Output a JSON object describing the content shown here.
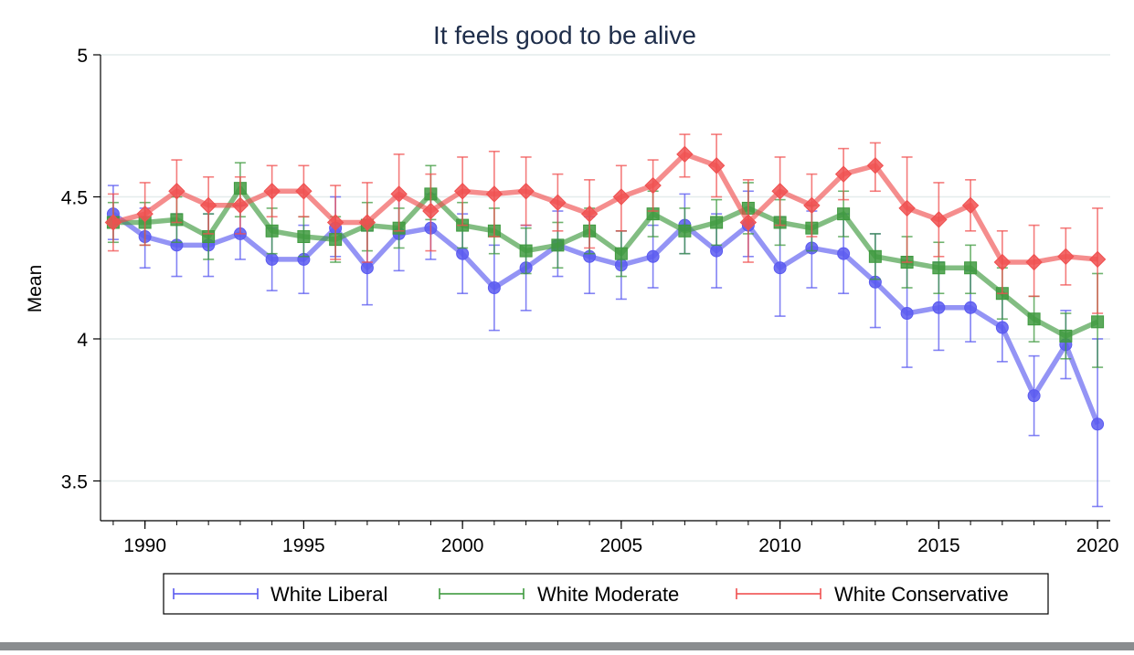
{
  "chart_data": {
    "type": "line",
    "title": "It feels good to be alive",
    "xlabel": "",
    "ylabel": "Mean",
    "xlim": [
      1988.6,
      2020.4
    ],
    "ylim": [
      3.36,
      5.0
    ],
    "x_ticks": [
      1990,
      1995,
      2000,
      2005,
      2010,
      2015,
      2020
    ],
    "y_ticks": [
      3.5,
      4,
      4.5,
      5
    ],
    "y_tick_labels": [
      "3.5",
      "4",
      "4.5",
      "5"
    ],
    "grid": true,
    "legend_position": "bottom",
    "x": [
      1989,
      1990,
      1991,
      1992,
      1993,
      1994,
      1995,
      1996,
      1997,
      1998,
      1999,
      2000,
      2001,
      2002,
      2003,
      2004,
      2005,
      2006,
      2007,
      2008,
      2009,
      2010,
      2011,
      2012,
      2013,
      2014,
      2015,
      2016,
      2017,
      2018,
      2019,
      2020
    ],
    "series": [
      {
        "name": "White Liberal",
        "color": "#5a5af0",
        "marker": "circle",
        "values": [
          4.44,
          4.36,
          4.33,
          4.33,
          4.37,
          4.28,
          4.28,
          4.39,
          4.25,
          4.37,
          4.39,
          4.3,
          4.18,
          4.25,
          4.33,
          4.29,
          4.26,
          4.29,
          4.4,
          4.31,
          4.4,
          4.25,
          4.32,
          4.3,
          4.2,
          4.09,
          4.11,
          4.11,
          4.04,
          3.8,
          3.98,
          3.7
        ],
        "err_lo": [
          4.35,
          4.25,
          4.22,
          4.22,
          4.28,
          4.17,
          4.16,
          4.29,
          4.12,
          4.24,
          4.28,
          4.16,
          4.03,
          4.1,
          4.22,
          4.16,
          4.14,
          4.18,
          4.3,
          4.18,
          4.29,
          4.08,
          4.18,
          4.16,
          4.04,
          3.9,
          3.96,
          3.99,
          3.92,
          3.66,
          3.86,
          3.41
        ],
        "err_hi": [
          4.54,
          4.46,
          4.44,
          4.44,
          4.47,
          4.39,
          4.4,
          4.5,
          4.38,
          4.5,
          4.51,
          4.44,
          4.33,
          4.4,
          4.45,
          4.43,
          4.38,
          4.4,
          4.51,
          4.44,
          4.52,
          4.43,
          4.45,
          4.44,
          4.37,
          4.29,
          4.27,
          4.24,
          4.16,
          3.94,
          4.1,
          4.0
        ]
      },
      {
        "name": "White Moderate",
        "color": "#3f9a3f",
        "marker": "square",
        "values": [
          4.41,
          4.41,
          4.42,
          4.36,
          4.53,
          4.38,
          4.36,
          4.35,
          4.4,
          4.39,
          4.51,
          4.4,
          4.38,
          4.31,
          4.33,
          4.38,
          4.3,
          4.44,
          4.38,
          4.41,
          4.46,
          4.41,
          4.39,
          4.44,
          4.29,
          4.27,
          4.25,
          4.25,
          4.16,
          4.07,
          4.01,
          4.06
        ],
        "err_lo": [
          4.34,
          4.33,
          4.34,
          4.28,
          4.43,
          4.3,
          4.29,
          4.27,
          4.31,
          4.32,
          4.42,
          4.32,
          4.3,
          4.23,
          4.25,
          4.3,
          4.22,
          4.36,
          4.3,
          4.33,
          4.37,
          4.33,
          4.31,
          4.36,
          4.21,
          4.18,
          4.16,
          4.16,
          4.07,
          3.99,
          3.93,
          3.9
        ],
        "err_hi": [
          4.48,
          4.48,
          4.5,
          4.44,
          4.62,
          4.46,
          4.43,
          4.43,
          4.48,
          4.46,
          4.61,
          4.48,
          4.46,
          4.39,
          4.41,
          4.46,
          4.38,
          4.52,
          4.46,
          4.49,
          4.55,
          4.49,
          4.47,
          4.52,
          4.37,
          4.36,
          4.34,
          4.33,
          4.25,
          4.15,
          4.09,
          4.23
        ]
      },
      {
        "name": "White Conservative",
        "color": "#f05050",
        "marker": "diamond",
        "values": [
          4.41,
          4.44,
          4.52,
          4.47,
          4.47,
          4.52,
          4.52,
          4.41,
          4.41,
          4.51,
          4.45,
          4.52,
          4.51,
          4.52,
          4.48,
          4.44,
          4.5,
          4.54,
          4.65,
          4.61,
          4.41,
          4.52,
          4.47,
          4.58,
          4.61,
          4.46,
          4.42,
          4.47,
          4.27,
          4.27,
          4.29,
          4.28
        ],
        "err_lo": [
          4.31,
          4.33,
          4.41,
          4.37,
          4.37,
          4.43,
          4.43,
          4.28,
          4.27,
          4.38,
          4.31,
          4.4,
          4.36,
          4.4,
          4.38,
          4.32,
          4.38,
          4.45,
          4.57,
          4.5,
          4.27,
          4.4,
          4.36,
          4.49,
          4.52,
          4.27,
          4.29,
          4.38,
          4.16,
          4.15,
          4.19,
          4.09
        ],
        "err_hi": [
          4.51,
          4.55,
          4.63,
          4.57,
          4.57,
          4.61,
          4.61,
          4.54,
          4.55,
          4.65,
          4.58,
          4.64,
          4.66,
          4.64,
          4.58,
          4.56,
          4.61,
          4.63,
          4.72,
          4.72,
          4.56,
          4.64,
          4.58,
          4.67,
          4.69,
          4.64,
          4.55,
          4.56,
          4.38,
          4.4,
          4.39,
          4.46
        ]
      }
    ]
  },
  "colors": {
    "background": "#ffffff",
    "grid": "#e4ecec",
    "axis": "#000000",
    "title": "#1e2d4a"
  }
}
